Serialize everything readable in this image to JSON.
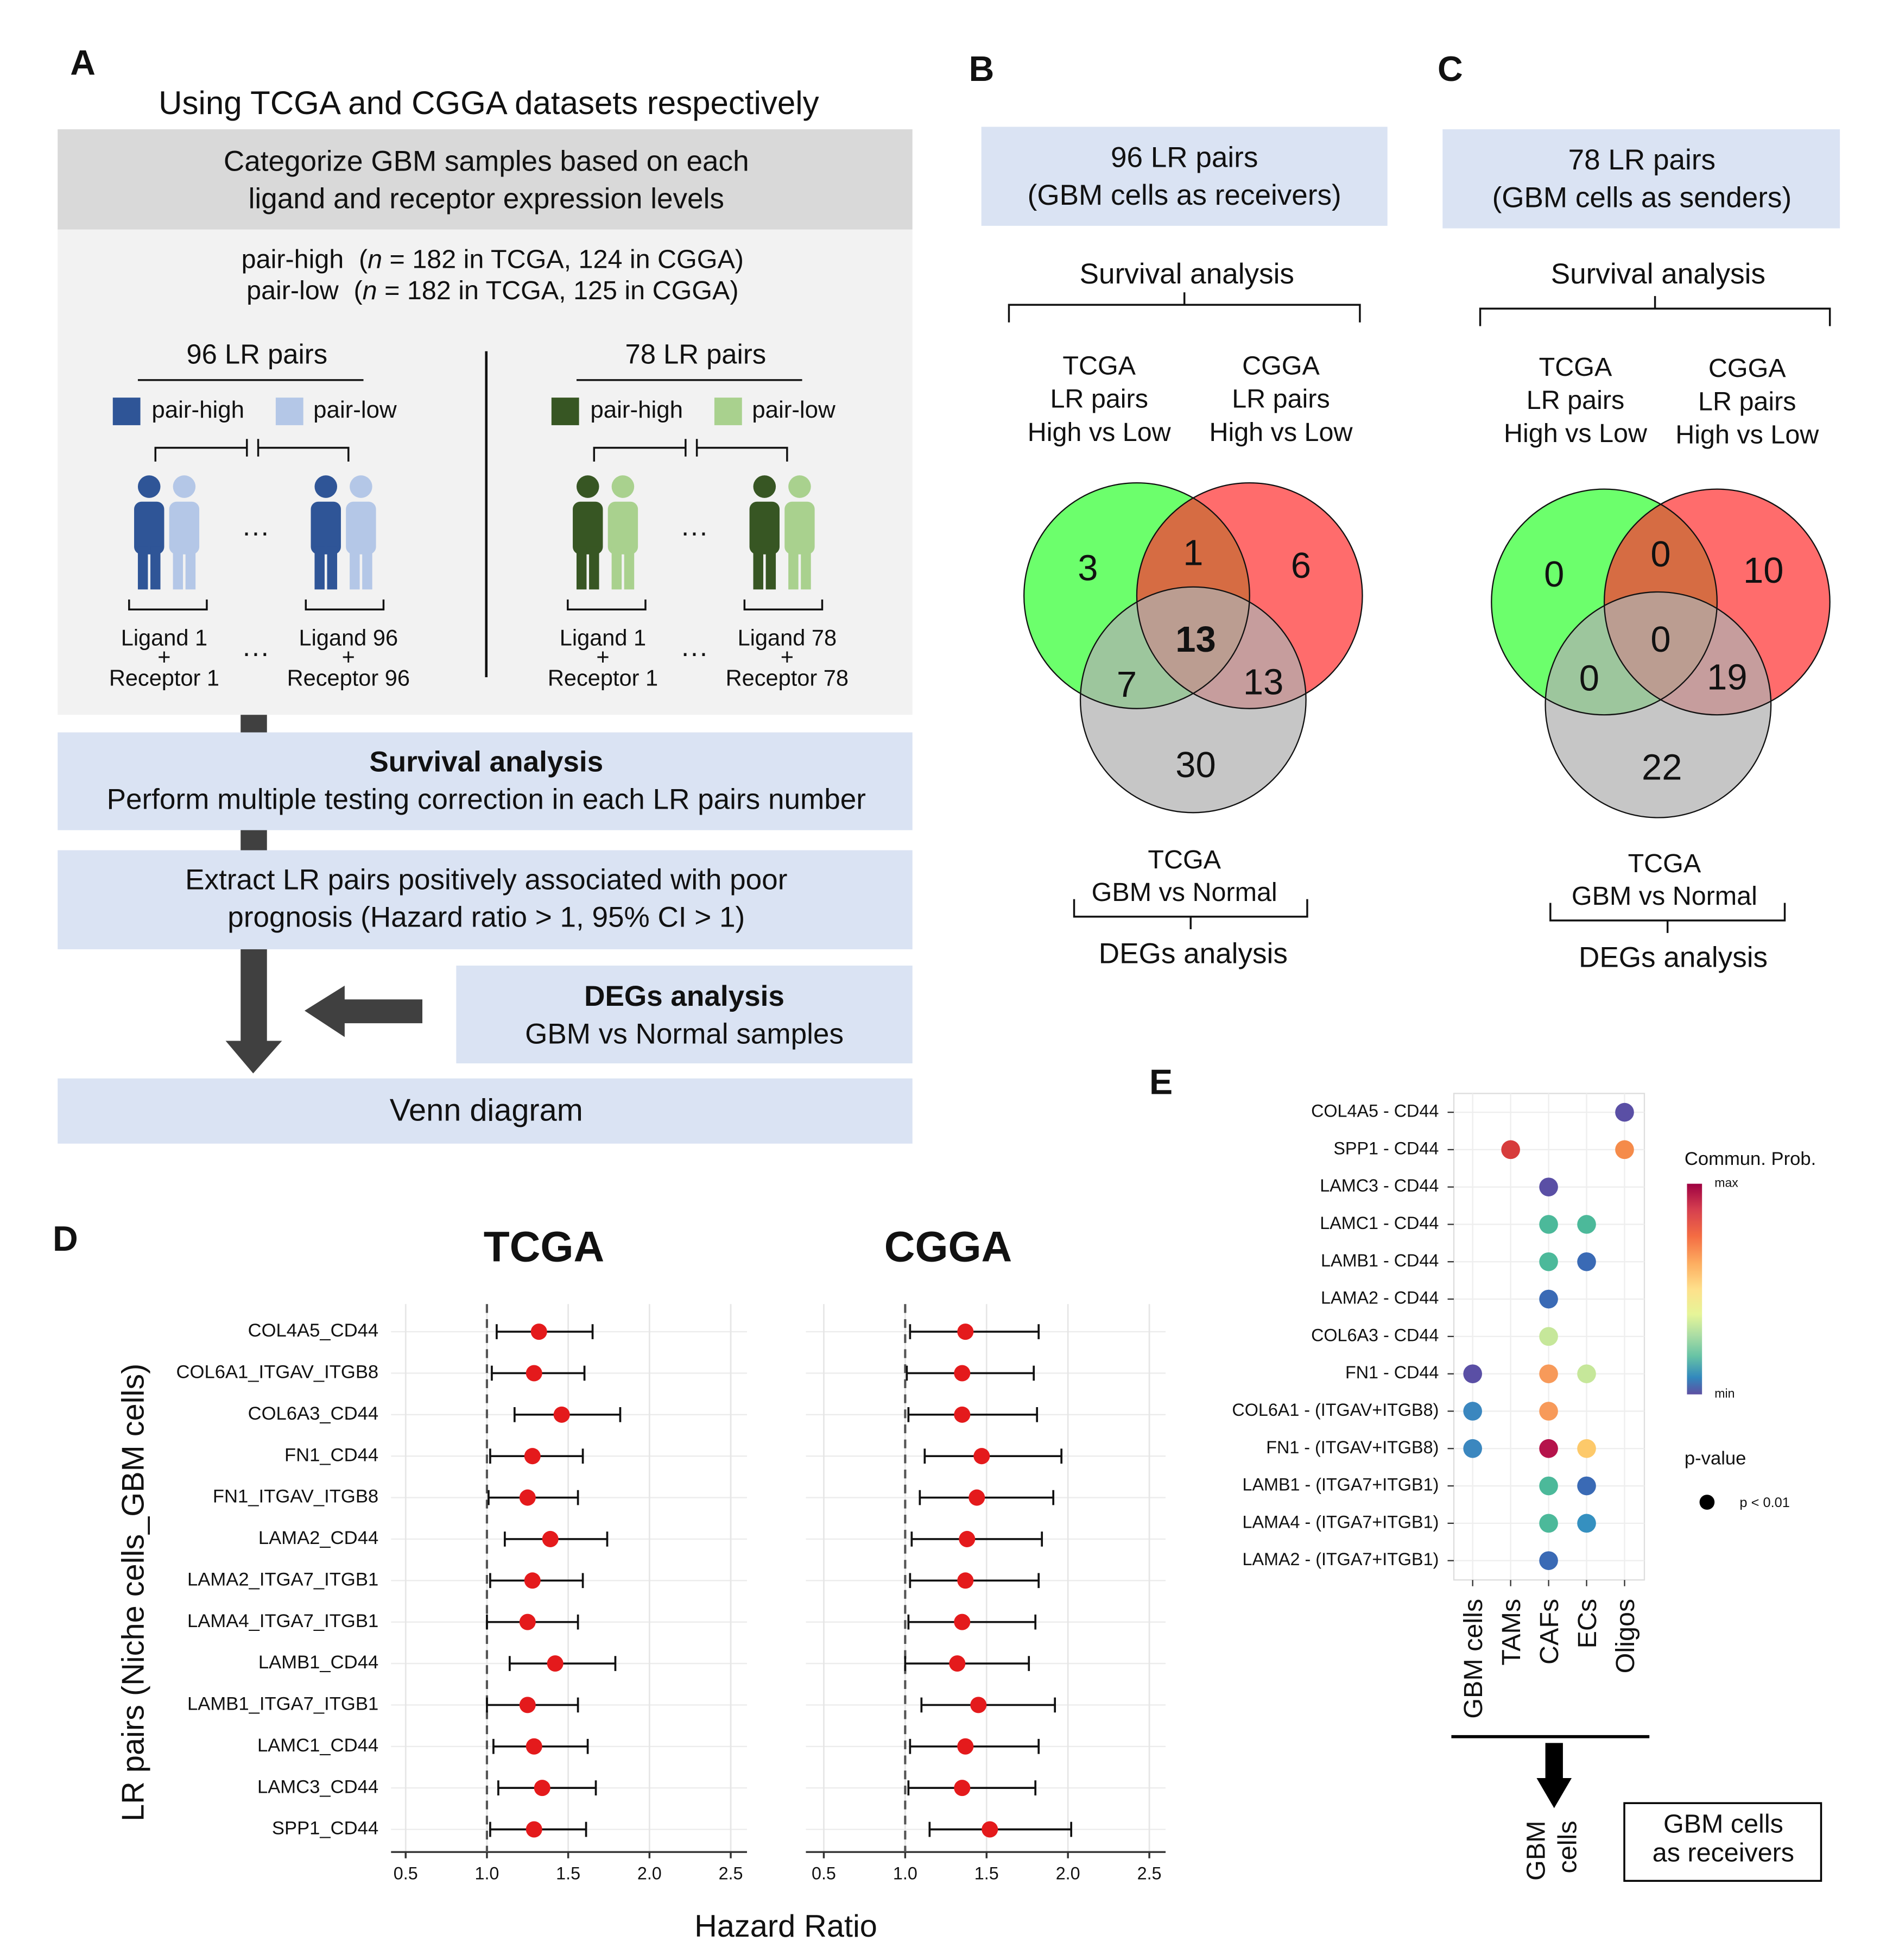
{
  "panel_a": {
    "label": "A",
    "heading": "Using TCGA and CGGA datasets respectively",
    "categorize": [
      "Categorize GBM samples based on each",
      "ligand and receptor expression levels"
    ],
    "groups": [
      {
        "label": "pair-high",
        "open": "(",
        "var": "n",
        "rest": " = 182 in TCGA, 124 in CGGA)"
      },
      {
        "label": "pair-low",
        "open": "(",
        "var": "n",
        "rest": " = 182 in TCGA, 125 in CGGA)"
      }
    ],
    "sets": [
      {
        "title": "96 LR pairs",
        "high": "pair-high",
        "low": "pair-low",
        "colors": [
          "#2f5597",
          "#b4c7e7"
        ],
        "ellipsis": "···",
        "first": [
          "Ligand 1",
          "+",
          "Receptor 1"
        ],
        "last": [
          "Ligand 96",
          "+",
          "Receptor 96"
        ]
      },
      {
        "title": "78 LR pairs",
        "high": "pair-high",
        "low": "pair-low",
        "colors": [
          "#375623",
          "#a9d18e"
        ],
        "ellipsis": "···",
        "first": [
          "Ligand 1",
          "+",
          "Receptor 1"
        ],
        "last": [
          "Ligand 78",
          "+",
          "Receptor 78"
        ]
      }
    ],
    "survival": {
      "title": "Survival analysis",
      "text": "Perform multiple testing correction in each LR pairs number"
    },
    "extract": [
      "Extract LR pairs positively associated with poor",
      "prognosis (Hazard ratio > 1, 95% CI > 1)"
    ],
    "degs": {
      "title": "DEGs analysis",
      "text": "GBM vs Normal samples"
    },
    "venn": "Venn diagram"
  },
  "panel_b": {
    "label": "B",
    "box": [
      "96 LR pairs",
      "(GBM cells as receivers)"
    ],
    "survival": "Survival analysis",
    "set_tcga": [
      "TCGA",
      "LR pairs",
      "High vs Low"
    ],
    "set_cgga": [
      "CGGA",
      "LR pairs",
      "High vs Low"
    ],
    "counts": [
      3,
      1,
      6,
      13,
      7,
      13,
      30
    ],
    "bottom": [
      "TCGA",
      "GBM vs Normal"
    ],
    "degs": "DEGs analysis"
  },
  "panel_c": {
    "label": "C",
    "box": [
      "78 LR pairs",
      "(GBM cells as senders)"
    ],
    "survival": "Survival analysis",
    "set_tcga": [
      "TCGA",
      "LR pairs",
      "High vs Low"
    ],
    "set_cgga": [
      "CGGA",
      "LR pairs",
      "High vs Low"
    ],
    "counts": [
      0,
      0,
      10,
      0,
      0,
      19,
      22
    ],
    "bottom": [
      "TCGA",
      "GBM vs Normal"
    ],
    "degs": "DEGs analysis"
  },
  "panel_d": {
    "label": "D",
    "ylabel": "LR pairs (Niche cells_GBM cells)",
    "xlabel": "Hazard Ratio"
  },
  "panel_e": {
    "label": "E",
    "below": [
      "GBM",
      "cells"
    ],
    "box": [
      "GBM cells",
      "as receivers"
    ]
  },
  "chart_data": [
    {
      "type": "forest",
      "title": "TCGA",
      "title_color": "#4daf4a",
      "color": "#e41a1c",
      "categories": [
        "COL4A5_CD44",
        "COL6A1_ITGAV_ITGB8",
        "COL6A3_CD44",
        "FN1_CD44",
        "FN1_ITGAV_ITGB8",
        "LAMA2_CD44",
        "LAMA2_ITGA7_ITGB1",
        "LAMA4_ITGA7_ITGB1",
        "LAMB1_CD44",
        "LAMB1_ITGA7_ITGB1",
        "LAMC1_CD44",
        "LAMC3_CD44",
        "SPP1_CD44"
      ],
      "values": [
        1.32,
        1.29,
        1.46,
        1.28,
        1.25,
        1.39,
        1.28,
        1.25,
        1.42,
        1.25,
        1.29,
        1.34,
        1.29
      ],
      "lower": [
        1.06,
        1.03,
        1.17,
        1.02,
        1.01,
        1.11,
        1.02,
        1.0,
        1.14,
        1.0,
        1.04,
        1.07,
        1.02
      ],
      "upper": [
        1.65,
        1.6,
        1.82,
        1.59,
        1.56,
        1.74,
        1.59,
        1.56,
        1.79,
        1.56,
        1.62,
        1.67,
        1.61
      ],
      "xlim": [
        0.41,
        2.6
      ],
      "xticks": [
        0.5,
        {
          "value": 1,
          "label": "1.0"
        },
        1.5,
        {
          "value": 2,
          "label": "2.0"
        },
        2.5
      ],
      "reference": 1,
      "grid": true
    },
    {
      "type": "forest",
      "title": "CGGA",
      "title_color": "#e8141e",
      "color": "#e41a1c",
      "values": [
        1.37,
        1.35,
        1.35,
        1.47,
        1.44,
        1.38,
        1.37,
        1.35,
        1.32,
        1.45,
        1.37,
        1.35,
        1.52
      ],
      "lower": [
        1.03,
        1.01,
        1.02,
        1.12,
        1.09,
        1.04,
        1.03,
        1.02,
        1.0,
        1.1,
        1.03,
        1.02,
        1.15
      ],
      "upper": [
        1.82,
        1.79,
        1.81,
        1.96,
        1.91,
        1.84,
        1.82,
        1.8,
        1.76,
        1.92,
        1.82,
        1.8,
        2.02
      ],
      "xlim": [
        0.39,
        2.6
      ],
      "xticks": [
        0.5,
        {
          "value": 1,
          "label": "1.0"
        },
        1.5,
        {
          "value": 2,
          "label": "2.0"
        },
        2.5
      ],
      "reference": 1,
      "grid": true
    },
    {
      "type": "dot",
      "categories": [
        "COL4A5 - CD44",
        "SPP1 - CD44",
        "LAMC3 - CD44",
        "LAMC1 - CD44",
        "LAMB1 - CD44",
        "LAMA2 - CD44",
        "COL6A3 - CD44",
        "FN1 - CD44",
        "COL6A1 - (ITGAV+ITGB8)",
        "FN1 - (ITGAV+ITGB8)",
        "LAMB1 - (ITGA7+ITGB1)",
        "LAMA4 - (ITGA7+ITGB1)",
        "LAMA2 - (ITGA7+ITGB1)"
      ],
      "columns": [
        "GBM cells",
        "TAMs",
        "CAFs",
        "ECs",
        "Oligos"
      ],
      "points": [
        {
          "row": 0,
          "col": 4,
          "color": "#5a4fa5"
        },
        {
          "row": 1,
          "col": 1,
          "color": "#d73c3c"
        },
        {
          "row": 1,
          "col": 4,
          "color": "#f58b4a"
        },
        {
          "row": 2,
          "col": 2,
          "color": "#5a4fa5"
        },
        {
          "row": 3,
          "col": 2,
          "color": "#4cb99a"
        },
        {
          "row": 3,
          "col": 3,
          "color": "#4cb99a"
        },
        {
          "row": 4,
          "col": 2,
          "color": "#4cb99a"
        },
        {
          "row": 4,
          "col": 3,
          "color": "#3a6ab5"
        },
        {
          "row": 5,
          "col": 2,
          "color": "#3a6ab5"
        },
        {
          "row": 6,
          "col": 2,
          "color": "#c6e79a"
        },
        {
          "row": 7,
          "col": 0,
          "color": "#5a4fa5"
        },
        {
          "row": 7,
          "col": 2,
          "color": "#f79a5a"
        },
        {
          "row": 7,
          "col": 3,
          "color": "#c6e79a"
        },
        {
          "row": 8,
          "col": 0,
          "color": "#3b87bf"
        },
        {
          "row": 8,
          "col": 2,
          "color": "#f79a5a"
        },
        {
          "row": 9,
          "col": 0,
          "color": "#3b87bf"
        },
        {
          "row": 9,
          "col": 2,
          "color": "#b5134b"
        },
        {
          "row": 9,
          "col": 3,
          "color": "#fdc96a"
        },
        {
          "row": 10,
          "col": 2,
          "color": "#4cb99a"
        },
        {
          "row": 10,
          "col": 3,
          "color": "#3a6ab5"
        },
        {
          "row": 11,
          "col": 2,
          "color": "#4cb99a"
        },
        {
          "row": 11,
          "col": 3,
          "color": "#3590c0"
        },
        {
          "row": 12,
          "col": 2,
          "color": "#3a6ab5"
        }
      ],
      "legend_title": "Commun. Prob.",
      "legend_max": "max",
      "legend_min": "min",
      "size_title": "p-value",
      "size_label": "p < 0.01"
    }
  ]
}
